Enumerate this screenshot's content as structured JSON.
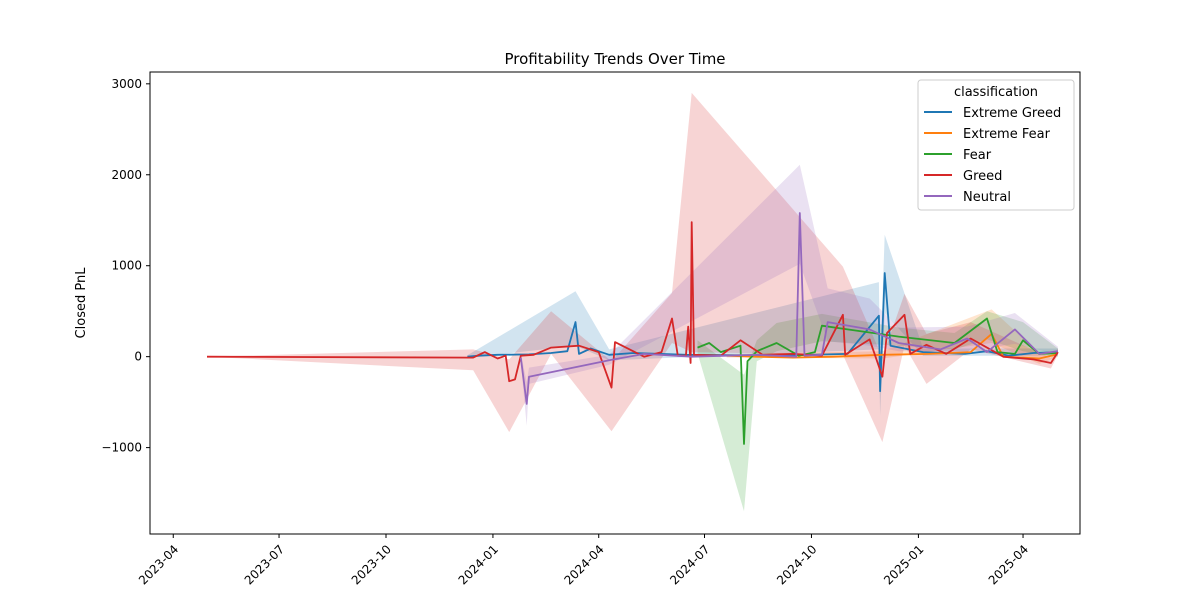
{
  "chart_data": {
    "type": "line",
    "title": "Profitability Trends Over Time",
    "xlabel": "",
    "ylabel": "Closed PnL",
    "x_ticks": [
      "2023-04",
      "2023-07",
      "2023-10",
      "2024-01",
      "2024-04",
      "2024-07",
      "2024-10",
      "2025-01",
      "2025-04"
    ],
    "y_ticks": [
      -1000,
      0,
      1000,
      2000,
      3000
    ],
    "xlim": [
      "2023-03-12",
      "2025-05-20"
    ],
    "ylim": [
      -1950,
      3130
    ],
    "grid": false,
    "legend": {
      "title": "classification",
      "placement": "top-right"
    },
    "series": [
      {
        "name": "Extreme Greed",
        "color": "#1f77b4",
        "points": [
          [
            "2023-12-10",
            0
          ],
          [
            "2023-12-20",
            10
          ],
          [
            "2024-01-05",
            20
          ],
          [
            "2024-02-01",
            25
          ],
          [
            "2024-02-20",
            40
          ],
          [
            "2024-03-05",
            60
          ],
          [
            "2024-03-12",
            380
          ],
          [
            "2024-03-15",
            30
          ],
          [
            "2024-03-25",
            90
          ],
          [
            "2024-04-10",
            20
          ],
          [
            "2024-05-01",
            40
          ],
          [
            "2024-06-15",
            20
          ],
          [
            "2024-09-01",
            10
          ],
          [
            "2024-11-01",
            30
          ],
          [
            "2024-11-28",
            450
          ],
          [
            "2024-11-29",
            -380
          ],
          [
            "2024-12-03",
            920
          ],
          [
            "2024-12-08",
            120
          ],
          [
            "2025-01-05",
            50
          ],
          [
            "2025-02-10",
            30
          ],
          [
            "2025-03-01",
            60
          ],
          [
            "2025-03-20",
            10
          ],
          [
            "2025-04-10",
            40
          ],
          [
            "2025-05-01",
            50
          ]
        ],
        "band": [
          [
            "2023-12-10",
            -15,
            15
          ],
          [
            "2024-03-12",
            120,
            720
          ],
          [
            "2024-04-10",
            -40,
            80
          ],
          [
            "2024-11-28",
            80,
            820
          ],
          [
            "2024-11-29",
            -650,
            -120
          ],
          [
            "2024-12-03",
            480,
            1340
          ],
          [
            "2025-01-05",
            10,
            90
          ],
          [
            "2025-05-01",
            10,
            90
          ]
        ]
      },
      {
        "name": "Extreme Fear",
        "color": "#ff7f0e",
        "points": [
          [
            "2024-07-20",
            10
          ],
          [
            "2024-08-15",
            0
          ],
          [
            "2024-09-15",
            -10
          ],
          [
            "2024-10-20",
            0
          ],
          [
            "2024-12-01",
            20
          ],
          [
            "2025-01-10",
            30
          ],
          [
            "2025-02-15",
            50
          ],
          [
            "2025-03-05",
            250
          ],
          [
            "2025-03-15",
            0
          ],
          [
            "2025-04-15",
            -20
          ],
          [
            "2025-04-29",
            20
          ]
        ],
        "band": [
          [
            "2024-07-20",
            -10,
            30
          ],
          [
            "2024-12-01",
            -20,
            60
          ],
          [
            "2025-03-05",
            150,
            520
          ],
          [
            "2025-04-15",
            -80,
            40
          ],
          [
            "2025-04-29",
            -10,
            50
          ]
        ]
      },
      {
        "name": "Fear",
        "color": "#2ca02c",
        "points": [
          [
            "2024-06-25",
            100
          ],
          [
            "2024-07-05",
            150
          ],
          [
            "2024-07-15",
            50
          ],
          [
            "2024-08-01",
            120
          ],
          [
            "2024-08-04",
            -960
          ],
          [
            "2024-08-07",
            -50
          ],
          [
            "2024-08-15",
            60
          ],
          [
            "2024-09-01",
            150
          ],
          [
            "2024-09-20",
            10
          ],
          [
            "2024-10-04",
            50
          ],
          [
            "2024-10-10",
            340
          ],
          [
            "2024-11-01",
            300
          ],
          [
            "2024-12-15",
            220
          ],
          [
            "2025-02-01",
            150
          ],
          [
            "2025-03-01",
            420
          ],
          [
            "2025-03-10",
            50
          ],
          [
            "2025-03-25",
            30
          ],
          [
            "2025-04-01",
            180
          ],
          [
            "2025-04-15",
            30
          ],
          [
            "2025-05-01",
            40
          ]
        ],
        "band": [
          [
            "2024-06-25",
            40,
            180
          ],
          [
            "2024-08-04",
            -1700,
            -200
          ],
          [
            "2024-08-15",
            -50,
            180
          ],
          [
            "2024-09-01",
            60,
            370
          ],
          [
            "2024-10-10",
            170,
            470
          ],
          [
            "2024-12-15",
            120,
            320
          ],
          [
            "2025-02-01",
            80,
            260
          ],
          [
            "2025-03-01",
            190,
            500
          ],
          [
            "2025-04-01",
            60,
            380
          ],
          [
            "2025-05-01",
            0,
            90
          ]
        ]
      },
      {
        "name": "Greed",
        "color": "#d62728",
        "points": [
          [
            "2023-04-30",
            0
          ],
          [
            "2023-12-15",
            -10
          ],
          [
            "2023-12-25",
            50
          ],
          [
            "2024-01-05",
            -20
          ],
          [
            "2024-01-12",
            10
          ],
          [
            "2024-01-15",
            -270
          ],
          [
            "2024-01-20",
            -250
          ],
          [
            "2024-01-25",
            10
          ],
          [
            "2024-02-05",
            20
          ],
          [
            "2024-02-20",
            100
          ],
          [
            "2024-03-15",
            120
          ],
          [
            "2024-04-01",
            50
          ],
          [
            "2024-04-12",
            -340
          ],
          [
            "2024-04-15",
            160
          ],
          [
            "2024-05-10",
            0
          ],
          [
            "2024-05-25",
            50
          ],
          [
            "2024-06-03",
            420
          ],
          [
            "2024-06-08",
            10
          ],
          [
            "2024-06-15",
            10
          ],
          [
            "2024-06-17",
            330
          ],
          [
            "2024-06-19",
            -70
          ],
          [
            "2024-06-20",
            1480
          ],
          [
            "2024-06-22",
            20
          ],
          [
            "2024-07-15",
            10
          ],
          [
            "2024-08-01",
            180
          ],
          [
            "2024-08-20",
            20
          ],
          [
            "2024-09-15",
            30
          ],
          [
            "2024-10-10",
            10
          ],
          [
            "2024-10-28",
            460
          ],
          [
            "2024-10-30",
            20
          ],
          [
            "2024-11-20",
            190
          ],
          [
            "2024-12-01",
            -220
          ],
          [
            "2024-12-05",
            260
          ],
          [
            "2024-12-20",
            460
          ],
          [
            "2024-12-25",
            30
          ],
          [
            "2025-01-08",
            130
          ],
          [
            "2025-01-25",
            30
          ],
          [
            "2025-02-15",
            200
          ],
          [
            "2025-03-15",
            0
          ],
          [
            "2025-04-10",
            -30
          ],
          [
            "2025-04-25",
            -70
          ],
          [
            "2025-05-01",
            50
          ]
        ],
        "band": [
          [
            "2023-04-30",
            0,
            0
          ],
          [
            "2023-12-15",
            -150,
            80
          ],
          [
            "2024-01-15",
            -830,
            -30
          ],
          [
            "2024-02-20",
            30,
            500
          ],
          [
            "2024-04-12",
            -820,
            -50
          ],
          [
            "2024-06-03",
            150,
            700
          ],
          [
            "2024-06-20",
            50,
            2900
          ],
          [
            "2024-10-28",
            20,
            990
          ],
          [
            "2024-12-01",
            -940,
            -10
          ],
          [
            "2024-12-20",
            120,
            690
          ],
          [
            "2025-01-08",
            -300,
            250
          ],
          [
            "2025-02-15",
            80,
            380
          ],
          [
            "2025-04-25",
            -130,
            -10
          ],
          [
            "2025-05-01",
            20,
            90
          ]
        ]
      },
      {
        "name": "Neutral",
        "color": "#9467bd",
        "points": [
          [
            "2024-01-25",
            -10
          ],
          [
            "2024-01-30",
            -520
          ],
          [
            "2024-02-01",
            -220
          ],
          [
            "2024-04-10",
            -40
          ],
          [
            "2024-05-10",
            30
          ],
          [
            "2024-06-20",
            0
          ],
          [
            "2024-08-15",
            20
          ],
          [
            "2024-09-18",
            0
          ],
          [
            "2024-09-21",
            1580
          ],
          [
            "2024-09-25",
            10
          ],
          [
            "2024-10-10",
            20
          ],
          [
            "2024-10-15",
            380
          ],
          [
            "2024-11-20",
            300
          ],
          [
            "2024-12-15",
            150
          ],
          [
            "2025-01-20",
            80
          ],
          [
            "2025-02-12",
            200
          ],
          [
            "2025-03-01",
            50
          ],
          [
            "2025-03-25",
            300
          ],
          [
            "2025-04-15",
            30
          ],
          [
            "2025-05-01",
            60
          ]
        ],
        "band": [
          [
            "2024-01-25",
            -60,
            40
          ],
          [
            "2024-01-30",
            -760,
            -280
          ],
          [
            "2024-02-01",
            -300,
            -120
          ],
          [
            "2024-04-10",
            -90,
            20
          ],
          [
            "2024-09-21",
            1020,
            2110
          ],
          [
            "2024-10-15",
            170,
            750
          ],
          [
            "2024-11-20",
            120,
            640
          ],
          [
            "2024-12-15",
            60,
            320
          ],
          [
            "2025-02-12",
            60,
            330
          ],
          [
            "2025-03-25",
            140,
            480
          ],
          [
            "2025-05-01",
            20,
            110
          ]
        ]
      }
    ]
  }
}
